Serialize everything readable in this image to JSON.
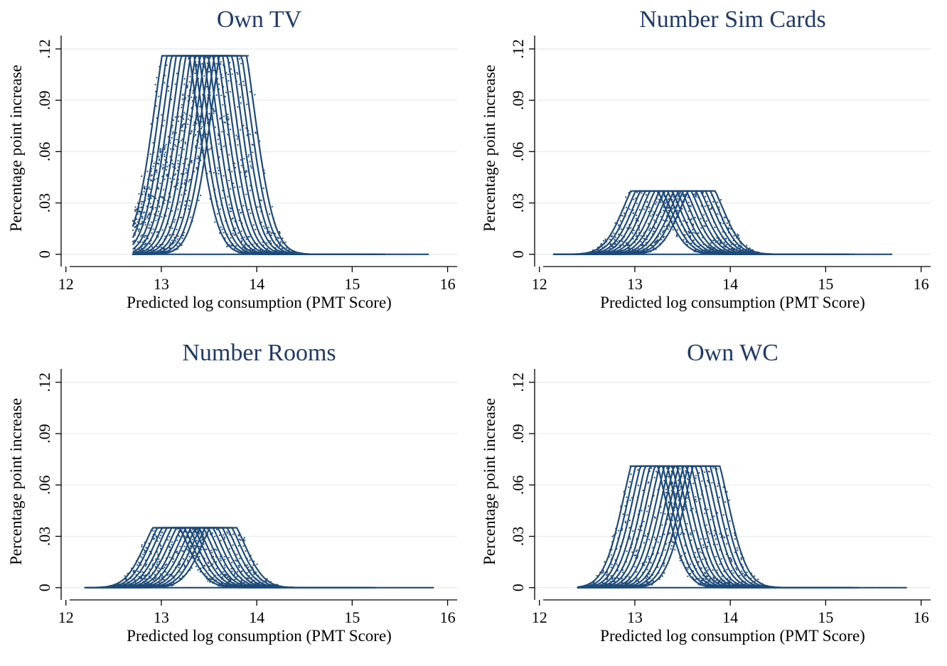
{
  "colors": {
    "series": "#1e4b79",
    "title": "#1f3a66",
    "grid": "#e6e9ee"
  },
  "chart_data": [
    {
      "type": "scatter",
      "title": "Own TV",
      "xlabel": "Predicted log consumption (PMT Score)",
      "ylabel": "Percentage point increase",
      "xlim": [
        11.95,
        16.1
      ],
      "ylim": [
        -0.003,
        0.127
      ],
      "xticks": [
        12,
        13,
        14,
        15,
        16
      ],
      "xtick_labels": [
        "12",
        "13",
        "14",
        "15",
        "16"
      ],
      "yticks": [
        0,
        0.03,
        0.06,
        0.09,
        0.12
      ],
      "ytick_labels": [
        "0",
        ".03",
        ".06",
        ".09",
        ".12"
      ],
      "grid": true,
      "plateau": 0.116,
      "curve_centers": [
        13.15,
        13.2,
        13.25,
        13.3,
        13.35,
        13.4,
        13.45,
        13.5,
        13.55,
        13.6,
        13.65,
        13.7,
        13.75
      ],
      "curve_width": 0.32,
      "curve_shape": "right-shoulder",
      "x_range": [
        12.7,
        15.8
      ],
      "scatter_left_cluster": true
    },
    {
      "type": "scatter",
      "title": "Number Sim Cards",
      "xlabel": "Predicted log consumption (PMT Score)",
      "ylabel": "Percentage point increase",
      "xlim": [
        11.95,
        16.1
      ],
      "ylim": [
        -0.003,
        0.127
      ],
      "xticks": [
        12,
        13,
        14,
        15,
        16
      ],
      "xtick_labels": [
        "12",
        "13",
        "14",
        "15",
        "16"
      ],
      "yticks": [
        0,
        0.03,
        0.06,
        0.09,
        0.12
      ],
      "ytick_labels": [
        "0",
        ".03",
        ".06",
        ".09",
        ".12"
      ],
      "grid": true,
      "plateau": 0.037,
      "curve_centers": [
        13.1,
        13.15,
        13.2,
        13.25,
        13.3,
        13.35,
        13.4,
        13.45,
        13.5,
        13.55,
        13.6,
        13.65,
        13.7
      ],
      "curve_width": 0.3,
      "curve_shape": "bell",
      "x_range": [
        12.15,
        15.7
      ],
      "scatter_left_cluster": false
    },
    {
      "type": "scatter",
      "title": "Number Rooms",
      "xlabel": "Predicted log consumption (PMT Score)",
      "ylabel": "Percentage point increase",
      "xlim": [
        11.95,
        16.1
      ],
      "ylim": [
        -0.003,
        0.127
      ],
      "xticks": [
        12,
        13,
        14,
        15,
        16
      ],
      "xtick_labels": [
        "12",
        "13",
        "14",
        "15",
        "16"
      ],
      "yticks": [
        0,
        0.03,
        0.06,
        0.09,
        0.12
      ],
      "ytick_labels": [
        "0",
        ".03",
        ".06",
        ".09",
        ".12"
      ],
      "grid": true,
      "plateau": 0.035,
      "curve_centers": [
        13.05,
        13.1,
        13.15,
        13.2,
        13.25,
        13.3,
        13.35,
        13.4,
        13.45,
        13.5,
        13.55,
        13.6,
        13.65
      ],
      "curve_width": 0.3,
      "curve_shape": "bell",
      "x_range": [
        12.2,
        15.85
      ],
      "scatter_left_cluster": false
    },
    {
      "type": "scatter",
      "title": "Own WC",
      "xlabel": "Predicted log consumption (PMT Score)",
      "ylabel": "Percentage point increase",
      "xlim": [
        11.95,
        16.1
      ],
      "ylim": [
        -0.003,
        0.127
      ],
      "xticks": [
        12,
        13,
        14,
        15,
        16
      ],
      "xtick_labels": [
        "12",
        "13",
        "14",
        "15",
        "16"
      ],
      "yticks": [
        0,
        0.03,
        0.06,
        0.09,
        0.12
      ],
      "ytick_labels": [
        "0",
        ".03",
        ".06",
        ".09",
        ".12"
      ],
      "grid": true,
      "plateau": 0.071,
      "curve_centers": [
        13.1,
        13.15,
        13.2,
        13.25,
        13.3,
        13.35,
        13.4,
        13.45,
        13.5,
        13.55,
        13.6,
        13.65,
        13.7,
        13.75
      ],
      "curve_width": 0.3,
      "curve_shape": "bell",
      "x_range": [
        12.4,
        15.85
      ],
      "scatter_left_cluster": false
    }
  ]
}
